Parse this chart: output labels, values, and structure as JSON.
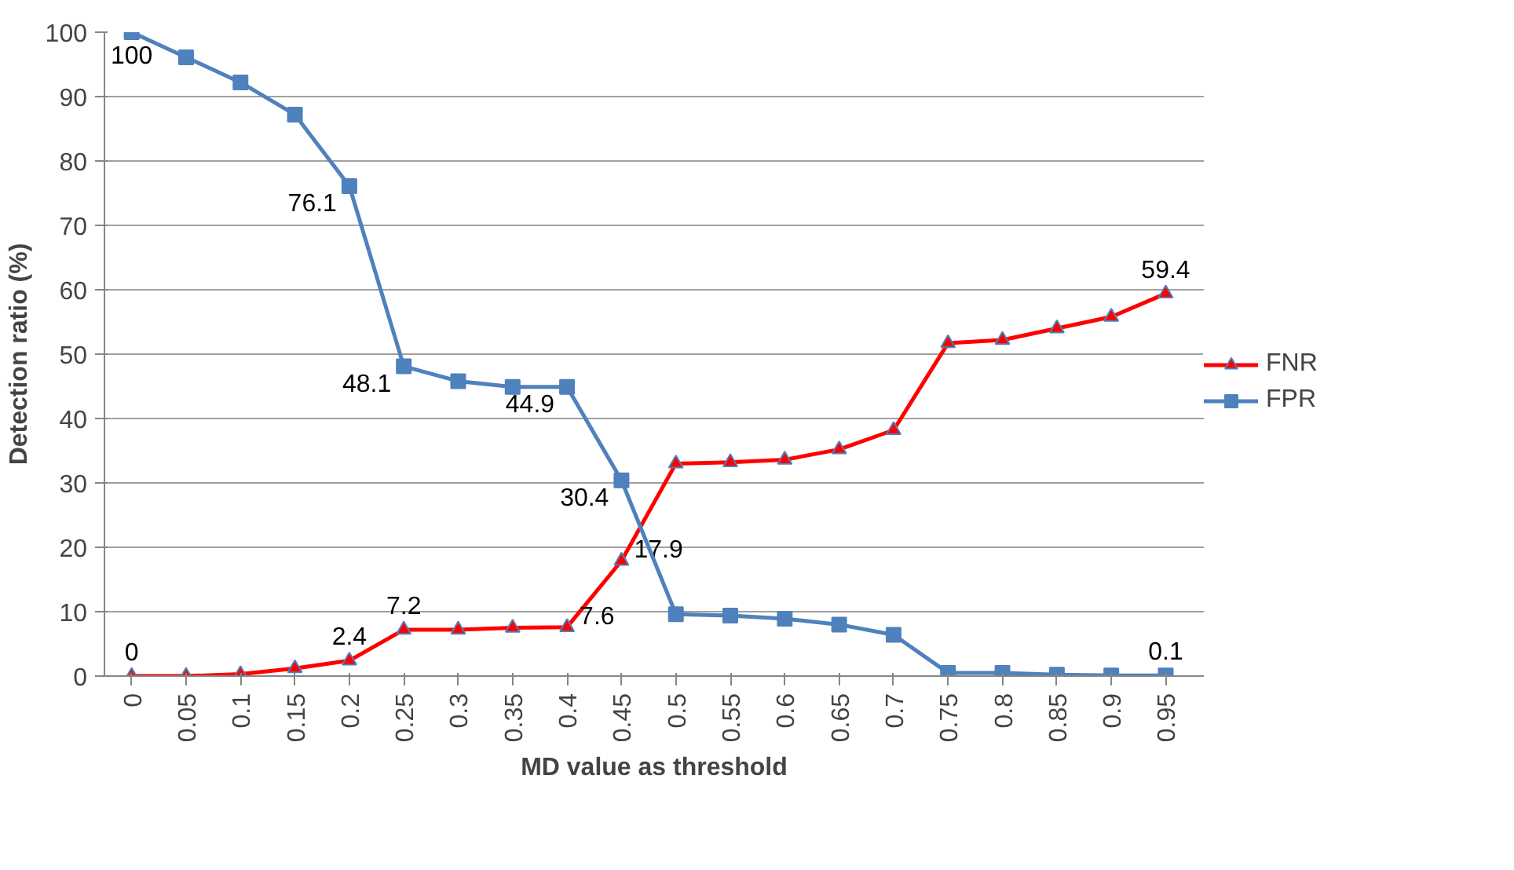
{
  "chart_data": {
    "type": "line",
    "xlabel": "MD value as threshold",
    "ylabel": "Detection ratio (%)",
    "categories": [
      "0",
      "0.05",
      "0.1",
      "0.15",
      "0.2",
      "0.25",
      "0.3",
      "0.35",
      "0.4",
      "0.45",
      "0.5",
      "0.55",
      "0.6",
      "0.65",
      "0.7",
      "0.75",
      "0.8",
      "0.85",
      "0.9",
      "0.95"
    ],
    "ylim": [
      0,
      100
    ],
    "yticks": [
      0,
      10,
      20,
      30,
      40,
      50,
      60,
      70,
      80,
      90,
      100
    ],
    "grid": "y",
    "legend": "right",
    "series": [
      {
        "name": "FNR",
        "color": "#ff0000",
        "marker": "triangle",
        "values": [
          0,
          0,
          0.3,
          1.2,
          2.4,
          7.2,
          7.2,
          7.5,
          7.6,
          17.9,
          33.0,
          33.2,
          33.6,
          35.2,
          38.2,
          51.7,
          52.2,
          54.0,
          55.8,
          59.4
        ],
        "value_labels": [
          "0",
          null,
          null,
          null,
          "2.4",
          "7.2",
          null,
          null,
          "7.6",
          "17.9",
          null,
          null,
          null,
          null,
          null,
          null,
          null,
          null,
          null,
          "59.4"
        ]
      },
      {
        "name": "FPR",
        "color": "#4f81bd",
        "marker": "square",
        "values": [
          100,
          96.1,
          92.2,
          87.2,
          76.1,
          48.1,
          45.8,
          44.9,
          44.9,
          30.4,
          9.6,
          9.4,
          8.9,
          8.0,
          6.4,
          0.5,
          0.5,
          0.2,
          0.1,
          0.1
        ],
        "value_labels": [
          "100",
          null,
          null,
          null,
          "76.1",
          "48.1",
          null,
          null,
          "44.9",
          "30.4",
          null,
          null,
          null,
          null,
          null,
          null,
          null,
          null,
          null,
          "0.1"
        ]
      }
    ]
  }
}
